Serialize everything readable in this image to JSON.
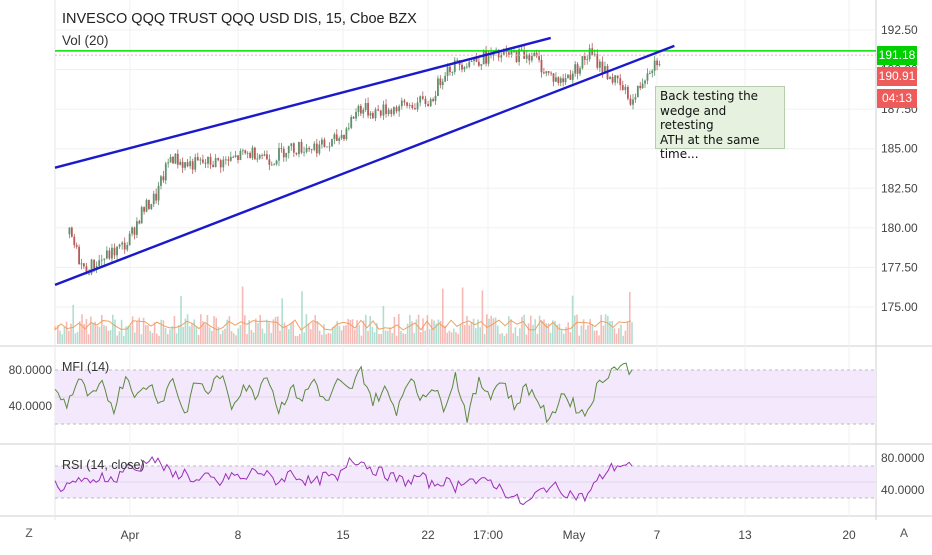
{
  "header": {
    "symbol_title": "INVESCO QQQ TRUST QQQ USD DIS, 15, Cboe BZX",
    "volume_label": "Vol (20)"
  },
  "annotation": {
    "text": "Back testing the\nwedge and retesting\nATH at the same\ntime..."
  },
  "badges": {
    "resistance": {
      "label": "191.18",
      "color": "#00d000"
    },
    "last_price": {
      "label": "190.91",
      "color": "#ee5b5b"
    },
    "countdown": {
      "label": "04:13",
      "color": "#ee5b5b"
    }
  },
  "colors": {
    "wedge_lines": "#1a1acc",
    "resistance_line": "#00e000",
    "candle_up": "#5f8f6b",
    "candle_down": "#b55a5a",
    "mfi_line": "#5a8a3c",
    "rsi_line": "#9a2fb8",
    "band_fill": "#f4e8fc"
  },
  "bottom_bar": {
    "zoom_button": "Z",
    "auto_button": "A"
  },
  "chart_data": [
    {
      "type": "candlestick",
      "title": "INVESCO QQQ TRUST QQQ USD DIS, 15, Cboe BZX",
      "x_ticks": [
        "Apr",
        "8",
        "15",
        "22",
        "17:00",
        "May",
        "7",
        "13",
        "20"
      ],
      "y_ticks": [
        175.0,
        177.5,
        180.0,
        182.5,
        185.0,
        187.5,
        190.0,
        192.5
      ],
      "ylim": [
        173.0,
        194.0
      ],
      "approx_close_path": [
        [
          "Mar 28",
          179.6
        ],
        [
          "Mar 29",
          177.3
        ],
        [
          "Apr 1",
          179.0
        ],
        [
          "Apr 2",
          181.0
        ],
        [
          "Apr 3",
          182.0
        ],
        [
          "Apr 4",
          184.5
        ],
        [
          "Apr 5",
          184.0
        ],
        [
          "Apr 8",
          184.2
        ],
        [
          "Apr 9",
          184.6
        ],
        [
          "Apr 10",
          184.8
        ],
        [
          "Apr 11",
          184.3
        ],
        [
          "Apr 12",
          185.0
        ],
        [
          "Apr 15",
          185.2
        ],
        [
          "Apr 16",
          186.0
        ],
        [
          "Apr 17",
          187.6
        ],
        [
          "Apr 18",
          187.3
        ],
        [
          "Apr 22",
          188.0
        ],
        [
          "Apr 23",
          190.0
        ],
        [
          "Apr 24",
          190.4
        ],
        [
          "Apr 25",
          190.6
        ],
        [
          "Apr 26",
          190.8
        ],
        [
          "Apr 29",
          191.0
        ],
        [
          "Apr 30",
          189.8
        ],
        [
          "May 1",
          189.2
        ],
        [
          "May 2",
          190.0
        ],
        [
          "May 3",
          191.0
        ],
        [
          "May 6",
          188.0
        ],
        [
          "May 7",
          190.0
        ],
        [
          "May 8",
          190.9
        ]
      ],
      "lines": [
        {
          "name": "wedge upper",
          "from": [
            "Mar 27",
            183.8
          ],
          "to": [
            "May 1",
            192.0
          ]
        },
        {
          "name": "wedge lower",
          "from": [
            "Mar 27",
            176.4
          ],
          "to": [
            "May 9",
            191.5
          ]
        },
        {
          "name": "resistance",
          "value": 191.18
        }
      ],
      "last_price": 190.91,
      "annotation": "Back testing the wedge and retesting ATH at the same time..."
    },
    {
      "type": "bar",
      "name": "Vol (20)",
      "description_values": "volume bars with a 20-period moving average, overlaid at bottom of price pane"
    },
    {
      "type": "line",
      "name": "MFI (14)",
      "y_ticks": [
        40.0,
        80.0
      ],
      "y_tick_labels": [
        "40.0000",
        "80.0000"
      ],
      "band": [
        20,
        80
      ],
      "approx_values": [
        55,
        42,
        70,
        48,
        62,
        38,
        75,
        50,
        66,
        44,
        72,
        30,
        68,
        55,
        76,
        40,
        64,
        52,
        78,
        35,
        60,
        48,
        70,
        42,
        66,
        56,
        80,
        45,
        58,
        36,
        72,
        50,
        62,
        40,
        74,
        28,
        66,
        54,
        70,
        38,
        62,
        48,
        20,
        55,
        42,
        30,
        60,
        78,
        86,
        80
      ]
    },
    {
      "type": "line",
      "name": "RSI (14, close)",
      "y_ticks": [
        40.0,
        80.0
      ],
      "y_tick_labels": [
        "40.0000",
        "80.0000"
      ],
      "band": [
        30,
        70
      ],
      "approx_values": [
        48,
        42,
        55,
        46,
        60,
        50,
        70,
        64,
        82,
        72,
        58,
        62,
        50,
        56,
        48,
        60,
        52,
        66,
        58,
        50,
        62,
        54,
        48,
        58,
        52,
        80,
        76,
        66,
        60,
        54,
        50,
        58,
        46,
        52,
        44,
        56,
        48,
        52,
        40,
        30,
        22,
        36,
        46,
        40,
        34,
        30,
        50,
        66,
        72,
        70
      ]
    }
  ]
}
